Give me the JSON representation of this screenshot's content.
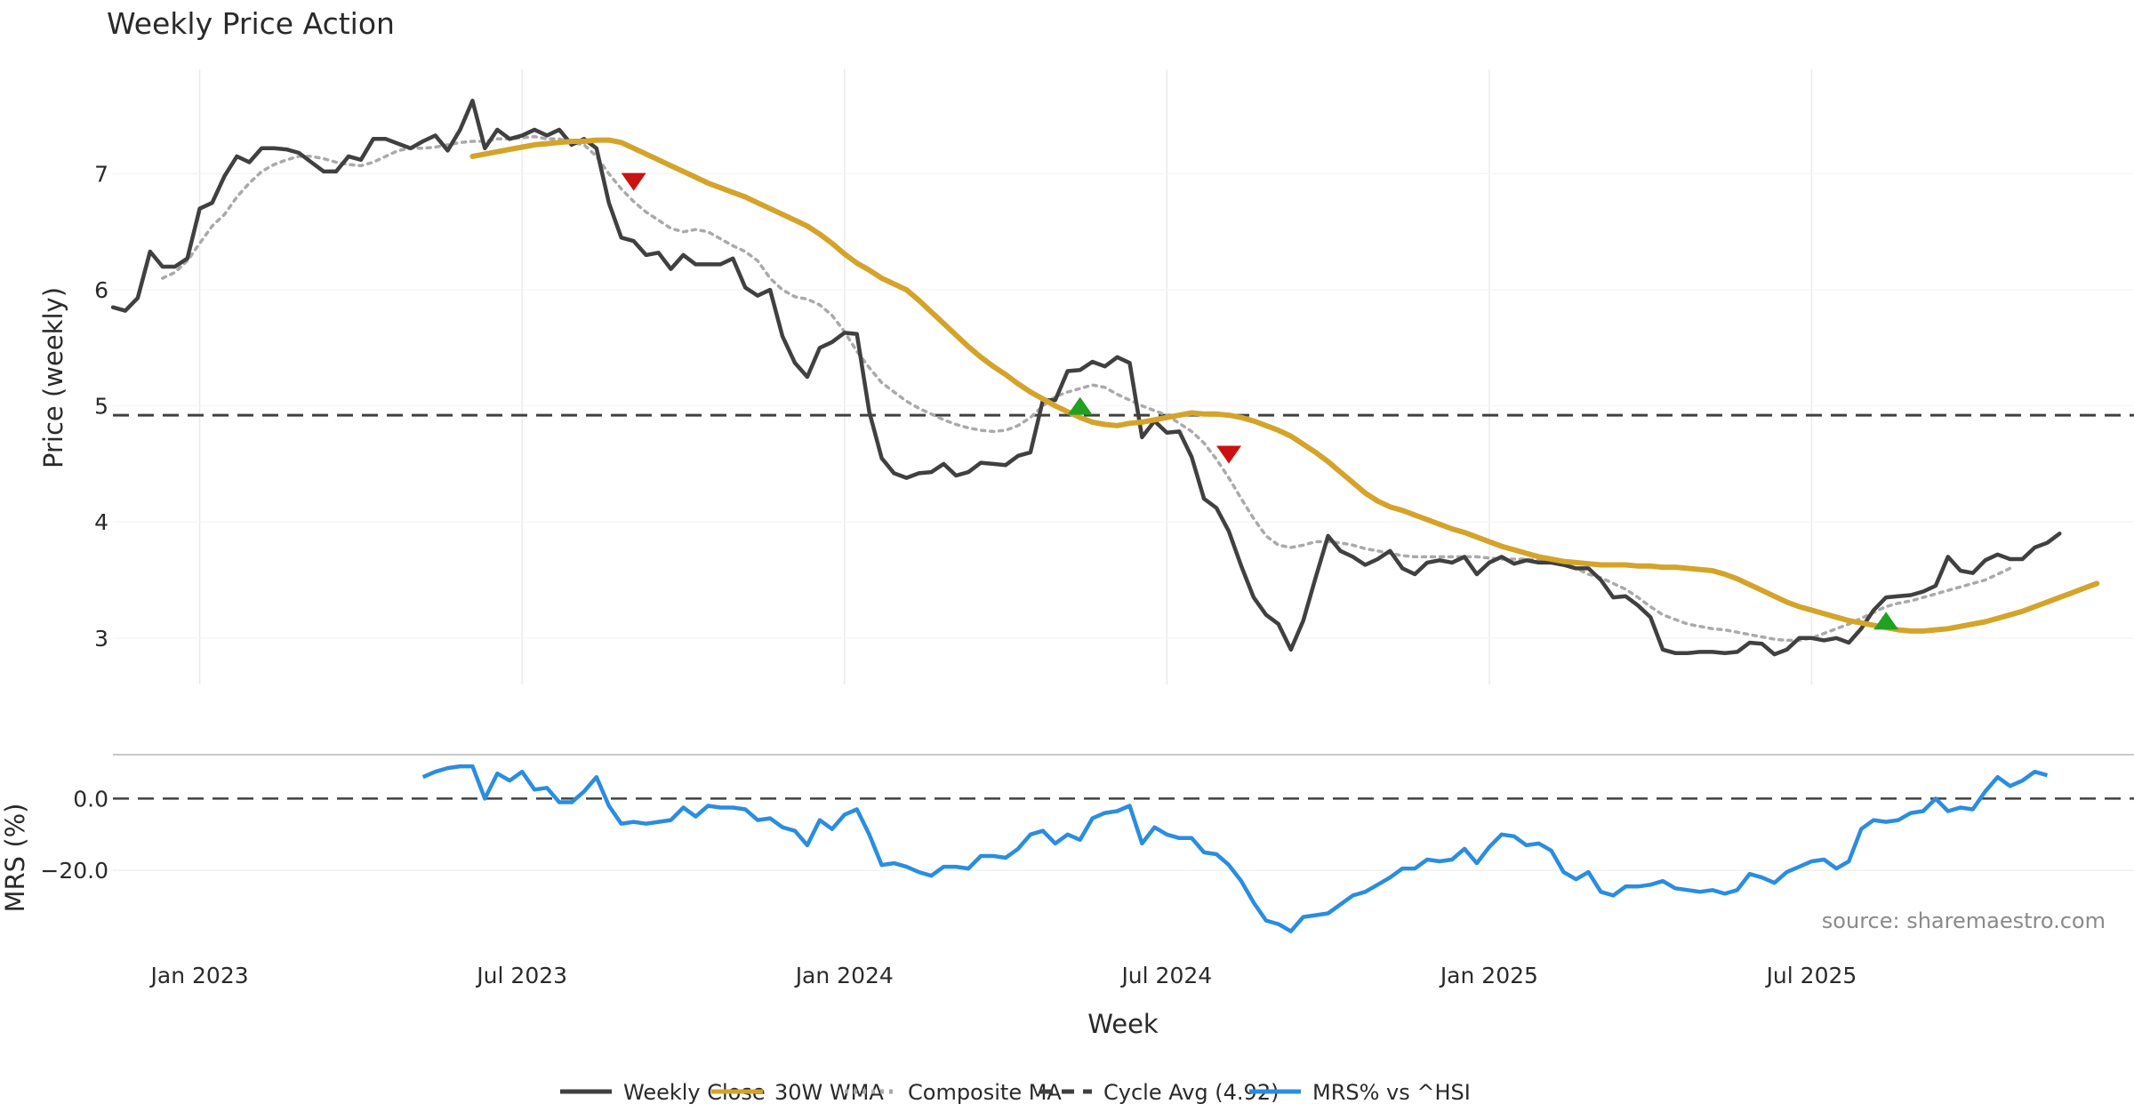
{
  "chart_data": {
    "type": "line",
    "title": "Weekly Price Action",
    "xlabel": "Week",
    "x_ticks": [
      "Jan 2023",
      "Jul 2023",
      "Jan 2024",
      "Jul 2024",
      "Jan 2025",
      "Jul 2025"
    ],
    "x_tick_weeks": [
      4,
      30,
      56,
      82,
      108,
      134
    ],
    "x_range_weeks": [
      -3,
      160
    ],
    "source_text": "source: sharemaestro.com",
    "price_panel": {
      "ylabel": "Price (weekly)",
      "ylim": [
        2.6,
        7.9
      ],
      "y_ticks": [
        3,
        4,
        5,
        6,
        7
      ],
      "cycle_avg": 4.92,
      "series": [
        {
          "name": "Weekly Close",
          "color": "#404040",
          "style": "solid",
          "start_week": -3,
          "values": [
            5.85,
            5.82,
            5.93,
            6.33,
            6.2,
            6.2,
            6.27,
            6.7,
            6.75,
            6.98,
            7.15,
            7.1,
            7.22,
            7.22,
            7.21,
            7.18,
            7.1,
            7.02,
            7.02,
            7.15,
            7.12,
            7.3,
            7.3,
            7.26,
            7.22,
            7.28,
            7.33,
            7.2,
            7.38,
            7.63,
            7.22,
            7.38,
            7.3,
            7.33,
            7.38,
            7.33,
            7.38,
            7.25,
            7.3,
            7.22,
            6.75,
            6.45,
            6.42,
            6.3,
            6.32,
            6.18,
            6.3,
            6.22,
            6.22,
            6.22,
            6.27,
            6.02,
            5.95,
            6.0,
            5.6,
            5.37,
            5.25,
            5.5,
            5.55,
            5.63,
            5.62,
            4.95,
            4.55,
            4.42,
            4.38,
            4.42,
            4.43,
            4.5,
            4.4,
            4.43,
            4.51,
            4.5,
            4.49,
            4.57,
            4.6,
            5.05,
            5.05,
            5.3,
            5.31,
            5.38,
            5.34,
            5.42,
            5.37,
            4.73,
            4.87,
            4.77,
            4.78,
            4.56,
            4.2,
            4.12,
            3.92,
            3.62,
            3.35,
            3.2,
            3.12,
            2.9,
            3.15,
            3.52,
            3.88,
            3.75,
            3.7,
            3.63,
            3.68,
            3.75,
            3.6,
            3.55,
            3.65,
            3.67,
            3.65,
            3.7,
            3.55,
            3.65,
            3.7,
            3.64,
            3.67,
            3.65,
            3.65,
            3.63,
            3.6,
            3.6,
            3.5,
            3.35,
            3.36,
            3.28,
            3.18,
            2.9,
            2.87,
            2.87,
            2.88,
            2.88,
            2.87,
            2.88,
            2.96,
            2.95,
            2.86,
            2.9,
            3.0,
            3.0,
            2.98,
            3.0,
            2.96,
            3.08,
            3.24,
            3.35,
            3.36,
            3.37,
            3.4,
            3.45,
            3.7,
            3.58,
            3.56,
            3.67,
            3.72,
            3.68,
            3.68,
            3.78,
            3.82,
            3.9
          ]
        },
        {
          "name": "30W WMA",
          "color": "#d4a42a",
          "style": "solid",
          "start_week": 26,
          "values": [
            7.15,
            7.17,
            7.19,
            7.21,
            7.23,
            7.25,
            7.26,
            7.27,
            7.28,
            7.28,
            7.29,
            7.29,
            7.27,
            7.22,
            7.17,
            7.12,
            7.07,
            7.02,
            6.97,
            6.92,
            6.88,
            6.84,
            6.8,
            6.75,
            6.7,
            6.65,
            6.6,
            6.55,
            6.48,
            6.4,
            6.31,
            6.23,
            6.17,
            6.1,
            6.05,
            6.0,
            5.91,
            5.81,
            5.71,
            5.61,
            5.51,
            5.42,
            5.34,
            5.27,
            5.19,
            5.12,
            5.06,
            5.0,
            4.95,
            4.9,
            4.86,
            4.84,
            4.83,
            4.85,
            4.86,
            4.88,
            4.9,
            4.92,
            4.94,
            4.93,
            4.93,
            4.92,
            4.9,
            4.87,
            4.83,
            4.79,
            4.74,
            4.67,
            4.6,
            4.52,
            4.43,
            4.34,
            4.25,
            4.18,
            4.13,
            4.1,
            4.06,
            4.02,
            3.98,
            3.94,
            3.91,
            3.87,
            3.83,
            3.79,
            3.76,
            3.73,
            3.7,
            3.68,
            3.66,
            3.65,
            3.64,
            3.63,
            3.63,
            3.63,
            3.62,
            3.62,
            3.61,
            3.61,
            3.6,
            3.59,
            3.58,
            3.55,
            3.51,
            3.46,
            3.41,
            3.36,
            3.31,
            3.27,
            3.24,
            3.21,
            3.18,
            3.15,
            3.13,
            3.11,
            3.09,
            3.07,
            3.06,
            3.06,
            3.07,
            3.08,
            3.1,
            3.12,
            3.14,
            3.17,
            3.2,
            3.23,
            3.27,
            3.31,
            3.35,
            3.39,
            3.43,
            3.47
          ]
        },
        {
          "name": "Composite MA",
          "color": "#aaaaaa",
          "style": "dotted",
          "start_week": 1,
          "values": [
            6.1,
            6.15,
            6.25,
            6.4,
            6.55,
            6.65,
            6.8,
            6.92,
            7.02,
            7.08,
            7.12,
            7.15,
            7.15,
            7.13,
            7.1,
            7.08,
            7.07,
            7.1,
            7.15,
            7.2,
            7.22,
            7.22,
            7.23,
            7.25,
            7.27,
            7.28,
            7.28,
            7.3,
            7.3,
            7.31,
            7.32,
            7.3,
            7.3,
            7.27,
            7.25,
            7.15,
            7.0,
            6.87,
            6.76,
            6.67,
            6.6,
            6.53,
            6.5,
            6.52,
            6.5,
            6.44,
            6.38,
            6.33,
            6.25,
            6.1,
            6.0,
            5.94,
            5.92,
            5.87,
            5.78,
            5.64,
            5.47,
            5.33,
            5.2,
            5.12,
            5.04,
            4.98,
            4.93,
            4.88,
            4.84,
            4.81,
            4.79,
            4.78,
            4.79,
            4.83,
            4.9,
            5.0,
            5.08,
            5.12,
            5.15,
            5.18,
            5.16,
            5.1,
            5.05,
            5.0,
            4.96,
            4.92,
            4.85,
            4.78,
            4.68,
            4.54,
            4.38,
            4.2,
            4.03,
            3.88,
            3.8,
            3.78,
            3.8,
            3.83,
            3.83,
            3.82,
            3.8,
            3.77,
            3.75,
            3.73,
            3.71,
            3.7,
            3.7,
            3.7,
            3.7,
            3.7,
            3.7,
            3.69,
            3.68,
            3.68,
            3.68,
            3.67,
            3.66,
            3.64,
            3.6,
            3.55,
            3.52,
            3.47,
            3.42,
            3.35,
            3.27,
            3.2,
            3.16,
            3.12,
            3.1,
            3.08,
            3.07,
            3.05,
            3.03,
            3.01,
            2.99,
            2.98,
            2.98,
            3.0,
            3.04,
            3.08,
            3.12,
            3.17,
            3.22,
            3.27,
            3.3,
            3.32,
            3.35,
            3.38,
            3.41,
            3.44,
            3.47,
            3.5,
            3.55,
            3.6
          ]
        }
      ],
      "signals": [
        {
          "type": "sell",
          "week": 39,
          "value": 6.93,
          "color": "#cc1111"
        },
        {
          "type": "buy",
          "week": 75,
          "value": 5.0,
          "color": "#22a022"
        },
        {
          "type": "sell",
          "week": 87,
          "value": 4.58,
          "color": "#cc1111"
        },
        {
          "type": "buy",
          "week": 140,
          "value": 3.15,
          "color": "#22a022"
        }
      ]
    },
    "mrs_panel": {
      "ylabel": "MRS (%)",
      "ylim": [
        -45,
        12
      ],
      "y_ticks": [
        0,
        -20
      ],
      "y_tick_labels": [
        "0.0",
        "−20.0"
      ],
      "zero_line": 0,
      "series": [
        {
          "name": "MRS% vs ^HSI",
          "color": "#2a8de0",
          "style": "solid",
          "start_week": 22,
          "values": [
            6,
            7.5,
            8.5,
            9,
            9,
            0,
            7,
            5,
            7.5,
            2.5,
            3,
            -1,
            -1,
            2,
            6,
            -2,
            -7,
            -6.5,
            -7,
            -6.5,
            -6,
            -2.5,
            -5,
            -2,
            -2.5,
            -2.5,
            -3,
            -6,
            -5.5,
            -8,
            -9,
            -13,
            -6,
            -8.5,
            -4.5,
            -3,
            -10,
            -18.5,
            -18,
            -19,
            -20.5,
            -21.5,
            -19,
            -19,
            -19.5,
            -16,
            -16,
            -16.5,
            -14,
            -10,
            -9,
            -12.5,
            -10,
            -11.5,
            -5.5,
            -4,
            -3.5,
            -2,
            -12.5,
            -8,
            -10,
            -11,
            -11,
            -15,
            -15.5,
            -18.5,
            -23,
            -29,
            -34,
            -35,
            -37,
            -33,
            -32.5,
            -32,
            -29.5,
            -27,
            -26,
            -24,
            -22,
            -19.5,
            -19.5,
            -17,
            -17.5,
            -17,
            -14,
            -18,
            -13.5,
            -10,
            -10.5,
            -13,
            -12.5,
            -14.5,
            -20.5,
            -22.5,
            -20.5,
            -26,
            -27,
            -24.5,
            -24.5,
            -24,
            -23,
            -25,
            -25.5,
            -26,
            -25.5,
            -26.5,
            -25.5,
            -21,
            -22,
            -23.5,
            -20.5,
            -19,
            -17.5,
            -17,
            -19.5,
            -17.5,
            -8.5,
            -6,
            -6.5,
            -6,
            -4,
            -3.5,
            0,
            -3.5,
            -2.5,
            -3,
            2,
            6,
            3.5,
            5,
            7.5,
            6.5
          ]
        }
      ]
    },
    "legend": [
      {
        "label": "Weekly Close",
        "color": "#404040",
        "style": "solid"
      },
      {
        "label": "30W WMA",
        "color": "#d4a42a",
        "style": "solid"
      },
      {
        "label": "Composite MA",
        "color": "#aaaaaa",
        "style": "dotted"
      },
      {
        "label": "Cycle Avg (4.92)",
        "color": "#404040",
        "style": "dashed"
      },
      {
        "label": "MRS% vs ^HSI",
        "color": "#2a8de0",
        "style": "solid"
      }
    ]
  }
}
